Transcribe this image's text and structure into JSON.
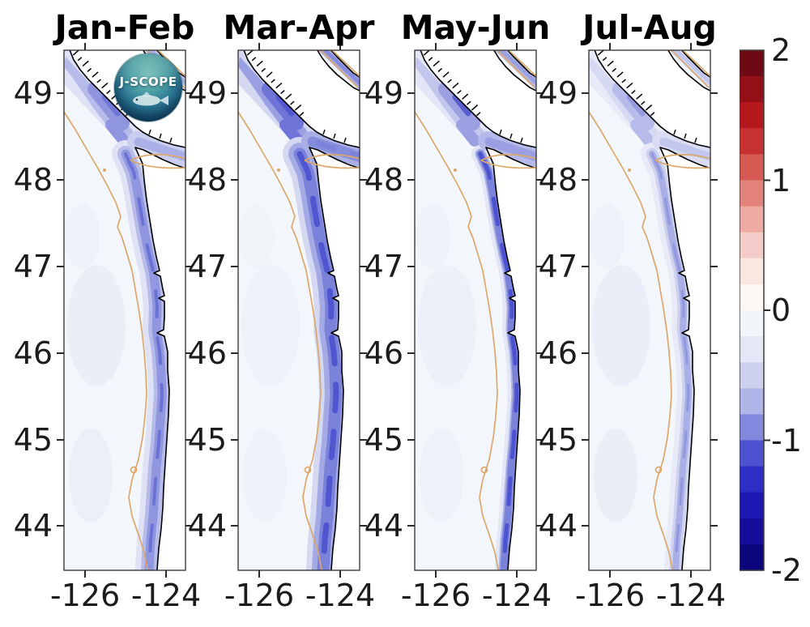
{
  "panels": [
    {
      "title": "Jan-Feb",
      "shading": {
        "wedge": "#b6bbe9",
        "wedge_dark": "#8f95de",
        "outer": "#dfe2f4",
        "mid": "#b6bbe9",
        "inner": "#9197de",
        "core": "#6b72d6",
        "strait": "#c9cdef",
        "strait_inner": "#aab0e5",
        "offshore_opacity": 0.5
      },
      "intensity": "moderate negative anomaly band over shelf and in Strait of Juan de Fuca"
    },
    {
      "title": "Mar-Apr",
      "shading": {
        "wedge": "#9aa0e2",
        "wedge_dark": "#6e75d7",
        "outer": "#d4d8f1",
        "mid": "#a4aae4",
        "inner": "#7b82da",
        "core": "#4f56d0",
        "strait": "#a9afe5",
        "strait_inner": "#868ddc",
        "offshore_opacity": 0.25
      },
      "intensity": "strongest and widest negative anomaly band along entire coast and strait"
    },
    {
      "title": "May-Jun",
      "shading": {
        "wedge": "#c2c6ec",
        "wedge_dark": "#9aa0e1",
        "outer": "#e3e6f6",
        "mid": "#aeb3e6",
        "inner": "#7b82da",
        "core": "#4d53d0",
        "strait": "#b4b9e9",
        "strait_inner": "#9aa0e1",
        "offshore_opacity": 0.4
      },
      "intensity": "narrow intense negative band hugging the coastline"
    },
    {
      "title": "Jul-Aug",
      "shading": {
        "wedge": "#d6d9f2",
        "wedge_dark": "#b6bbe9",
        "outer": "#e8eaf8",
        "mid": "#ced2ef",
        "inner": "#aab0e5",
        "core": "#9197de",
        "strait": "#dadcf3",
        "strait_inner": "#c2c6ec",
        "offshore_opacity": 0.55
      },
      "intensity": "weak light negative anomaly band near the coast"
    }
  ],
  "y_axis": {
    "tick_labels": [
      "49",
      "48",
      "47",
      "46",
      "45",
      "44"
    ]
  },
  "x_axis": {
    "tick_labels": [
      "-126",
      "-124"
    ]
  },
  "colorbar": {
    "tick_labels": [
      "2",
      "1",
      "0",
      "-1",
      "-2"
    ],
    "range_min": -2,
    "range_max": 2,
    "n_segments": 20,
    "segment_colors": [
      "#6d0a14",
      "#950f16",
      "#b6191d",
      "#c63230",
      "#d65a51",
      "#e2837b",
      "#eeaba3",
      "#f5cdc8",
      "#fae7e2",
      "#fdf7f4",
      "#f1f6fb",
      "#e4e7f6",
      "#cdd1ee",
      "#b0b5e7",
      "#8289dc",
      "#4d53d0",
      "#2c2ec5",
      "#1d17b2",
      "#140e9a",
      "#0c067c"
    ]
  },
  "logo": {
    "text": "J-SCOPE"
  },
  "colors": {
    "ocean": "#f3f7fb",
    "land": "#ffffff",
    "coastline": "#000000",
    "depth_contour": "#dca86a",
    "frame": "#3c3c3c",
    "tick": "#2a2a2a",
    "text": "#1a1a1a",
    "offshore_patch": "#dde3f3"
  },
  "chart_data": {
    "type": "heatmap",
    "title": "",
    "panel_titles": [
      "Jan-Feb",
      "Mar-Apr",
      "May-Jun",
      "Jul-Aug"
    ],
    "geography": "Pacific Northwest coast: Vancouver Island, Strait of Juan de Fuca, Washington and Oregon shelf",
    "x": {
      "label": "",
      "ticks": [
        -126,
        -124
      ],
      "range": [
        -126.55,
        -123.5
      ]
    },
    "y": {
      "label": "",
      "ticks": [
        49,
        48,
        47,
        46,
        45,
        44
      ],
      "range": [
        43.5,
        49.5
      ]
    },
    "colorbar": {
      "range": [
        -2,
        2
      ],
      "ticks": [
        2,
        1,
        0,
        -1,
        -2
      ],
      "n_segments": 20,
      "orientation": "vertical",
      "position": "right"
    },
    "panels": [
      {
        "label": "Jan-Feb",
        "anomaly_sign": "negative",
        "relative_intensity": 0.6,
        "approx_min": -1.0
      },
      {
        "label": "Mar-Apr",
        "anomaly_sign": "negative",
        "relative_intensity": 1.0,
        "approx_min": -1.4
      },
      {
        "label": "May-Jun",
        "anomaly_sign": "negative",
        "relative_intensity": 0.8,
        "approx_min": -1.2
      },
      {
        "label": "Jul-Aug",
        "anomaly_sign": "negative",
        "relative_intensity": 0.35,
        "approx_min": -0.6
      }
    ],
    "features": [
      "200m-isobath orange contour",
      "black coastline",
      "J-SCOPE logo on first panel"
    ]
  }
}
